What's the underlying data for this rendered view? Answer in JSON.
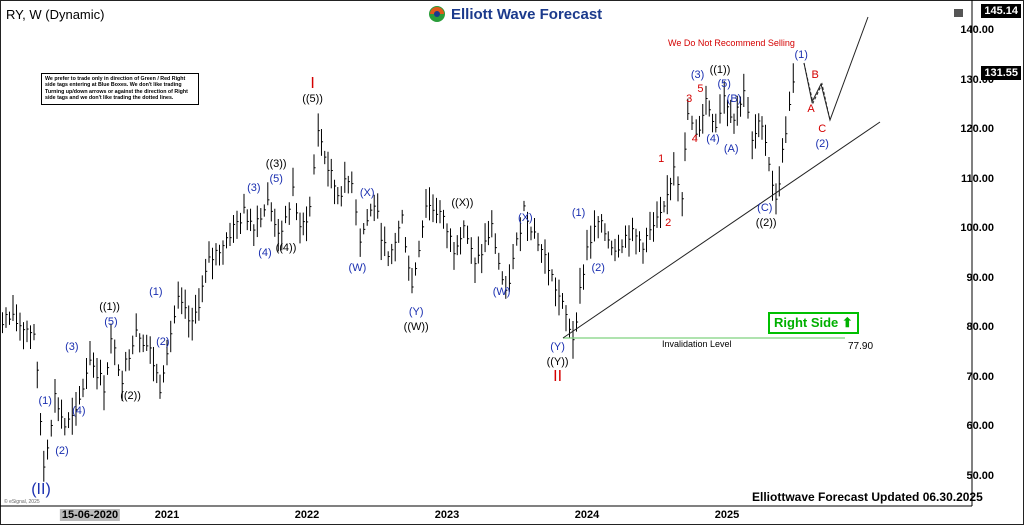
{
  "header": {
    "symbol_title": "RY, W (Dynamic)",
    "brand": "Elliott Wave Forecast"
  },
  "note_box": "We prefer to trade only in direction of Green / Red Right side tags entering at Blue Boxes. We don't like trading Turning up/down arrows or against the direction of Right side tags and we don't like trading the dotted lines.",
  "warning": "We Do Not Recommend Selling",
  "right_side_tag": "Right Side",
  "invalidation": {
    "label": "Invalidation Level",
    "value": "77.90"
  },
  "updated": "Elliottwave Forecast Updated 06.30.2025",
  "copyright": "© eSignal, 2025",
  "price_labels": {
    "current": "131.55",
    "high": "145.14"
  },
  "colors": {
    "blue_label": "#1a2fb0",
    "red_label": "#d40000",
    "right_side": "#00b000",
    "invalidation_line": "#7fd27f",
    "bars": "#000000"
  },
  "chart_data": {
    "type": "line",
    "title": "RY, W (Dynamic)",
    "ylim": [
      45,
      145
    ],
    "y_ticks": [
      "140.00",
      "130.00",
      "120.00",
      "110.00",
      "100.00",
      "90.00",
      "80.00",
      "70.00",
      "60.00",
      "50.00"
    ],
    "x_ticks": [
      "15-06-2020",
      "2021",
      "2022",
      "2023",
      "2024",
      "2025"
    ],
    "series": [
      {
        "values_x": [
          2019.5,
          2019.65,
          2019.85,
          2020.05,
          2020.12,
          2020.2,
          2020.27,
          2020.35,
          2020.45,
          2020.55,
          2020.6,
          2020.68,
          2020.78,
          2020.88,
          2020.95,
          2021.0,
          2021.08,
          2021.18,
          2021.3,
          2021.45,
          2021.55,
          2021.62,
          2021.72,
          2021.82,
          2021.9,
          2021.95,
          2022.02,
          2022.08,
          2022.15,
          2022.22,
          2022.32,
          2022.38,
          2022.48,
          2022.58,
          2022.68,
          2022.75,
          2022.85,
          2022.95,
          2023.05,
          2023.12,
          2023.2,
          2023.32,
          2023.42,
          2023.55,
          2023.7,
          2023.8,
          2023.9,
          2024.0,
          2024.08,
          2024.2,
          2024.3,
          2024.4,
          2024.55,
          2024.62,
          2024.68,
          2024.72,
          2024.78,
          2024.85,
          2024.92,
          2024.98,
          2025.05,
          2025.12,
          2025.18,
          2025.25,
          2025.35,
          2025.42,
          2025.5
        ],
        "values_y": [
          81,
          80,
          82,
          79,
          52,
          66,
          60,
          62,
          74,
          68,
          77,
          70,
          80,
          75,
          68,
          76,
          85,
          80,
          93,
          99,
          103,
          101,
          105,
          98,
          108,
          99,
          104,
          120,
          112,
          107,
          110,
          98,
          105,
          93,
          102,
          88,
          105,
          103,
          96,
          101,
          92,
          100,
          86,
          104,
          94,
          86,
          78,
          96,
          101,
          96,
          99,
          97,
          103,
          113,
          107,
          123,
          118,
          126,
          121,
          127,
          122,
          128,
          117,
          122,
          105,
          120,
          133
        ]
      }
    ],
    "wave_labels": [
      {
        "text": "(II)",
        "x": 2020.1,
        "y": 47,
        "color": "blue",
        "size": "big"
      },
      {
        "text": "(1)",
        "x": 2020.13,
        "y": 65,
        "color": "blue"
      },
      {
        "text": "(2)",
        "x": 2020.25,
        "y": 55,
        "color": "blue"
      },
      {
        "text": "(3)",
        "x": 2020.32,
        "y": 76,
        "color": "blue"
      },
      {
        "text": "(4)",
        "x": 2020.37,
        "y": 63,
        "color": "blue"
      },
      {
        "text": "(5)",
        "x": 2020.6,
        "y": 81,
        "color": "blue"
      },
      {
        "text": "((1))",
        "x": 2020.59,
        "y": 84,
        "color": "black"
      },
      {
        "text": "((2))",
        "x": 2020.74,
        "y": 66,
        "color": "black"
      },
      {
        "text": "(1)",
        "x": 2020.92,
        "y": 87,
        "color": "blue"
      },
      {
        "text": "(2)",
        "x": 2020.97,
        "y": 77,
        "color": "blue"
      },
      {
        "text": "(3)",
        "x": 2021.62,
        "y": 108,
        "color": "blue"
      },
      {
        "text": "(4)",
        "x": 2021.7,
        "y": 95,
        "color": "blue"
      },
      {
        "text": "(5)",
        "x": 2021.78,
        "y": 110,
        "color": "blue"
      },
      {
        "text": "((3))",
        "x": 2021.78,
        "y": 113,
        "color": "black"
      },
      {
        "text": "((4))",
        "x": 2021.85,
        "y": 96,
        "color": "black"
      },
      {
        "text": "((5))",
        "x": 2022.04,
        "y": 126,
        "color": "black"
      },
      {
        "text": "I",
        "x": 2022.04,
        "y": 129,
        "color": "red",
        "size": "big"
      },
      {
        "text": "(X)",
        "x": 2022.43,
        "y": 107,
        "color": "blue"
      },
      {
        "text": "(W)",
        "x": 2022.36,
        "y": 92,
        "color": "blue"
      },
      {
        "text": "((X))",
        "x": 2023.11,
        "y": 105,
        "color": "black"
      },
      {
        "text": "(Y)",
        "x": 2022.78,
        "y": 83,
        "color": "blue"
      },
      {
        "text": "((W))",
        "x": 2022.78,
        "y": 80,
        "color": "black"
      },
      {
        "text": "(X)",
        "x": 2023.56,
        "y": 102,
        "color": "blue"
      },
      {
        "text": "(W)",
        "x": 2023.39,
        "y": 87,
        "color": "blue"
      },
      {
        "text": "(Y)",
        "x": 2023.79,
        "y": 76,
        "color": "blue"
      },
      {
        "text": "((Y))",
        "x": 2023.79,
        "y": 73,
        "color": "black"
      },
      {
        "text": "II",
        "x": 2023.79,
        "y": 70,
        "color": "red",
        "size": "big"
      },
      {
        "text": "(1)",
        "x": 2023.94,
        "y": 103,
        "color": "blue"
      },
      {
        "text": "(2)",
        "x": 2024.08,
        "y": 92,
        "color": "blue"
      },
      {
        "text": "1",
        "x": 2024.53,
        "y": 114,
        "color": "red"
      },
      {
        "text": "2",
        "x": 2024.58,
        "y": 101,
        "color": "red"
      },
      {
        "text": "3",
        "x": 2024.73,
        "y": 126,
        "color": "red"
      },
      {
        "text": "4",
        "x": 2024.77,
        "y": 118,
        "color": "red"
      },
      {
        "text": "5",
        "x": 2024.81,
        "y": 128,
        "color": "red"
      },
      {
        "text": "(3)",
        "x": 2024.79,
        "y": 131,
        "color": "blue"
      },
      {
        "text": "(4)",
        "x": 2024.9,
        "y": 118,
        "color": "blue"
      },
      {
        "text": "((1))",
        "x": 2024.95,
        "y": 132,
        "color": "black"
      },
      {
        "text": "(5)",
        "x": 2024.98,
        "y": 129,
        "color": "blue"
      },
      {
        "text": "(B)",
        "x": 2025.05,
        "y": 126,
        "color": "blue"
      },
      {
        "text": "(A)",
        "x": 2025.03,
        "y": 116,
        "color": "blue"
      },
      {
        "text": "(C)",
        "x": 2025.27,
        "y": 104,
        "color": "blue"
      },
      {
        "text": "((2))",
        "x": 2025.28,
        "y": 101,
        "color": "black"
      },
      {
        "text": "(1)",
        "x": 2025.53,
        "y": 135,
        "color": "blue"
      },
      {
        "text": "B",
        "x": 2025.63,
        "y": 131,
        "color": "red"
      },
      {
        "text": "A",
        "x": 2025.6,
        "y": 124,
        "color": "red"
      },
      {
        "text": "C",
        "x": 2025.68,
        "y": 120,
        "color": "red"
      },
      {
        "text": "(2)",
        "x": 2025.68,
        "y": 117,
        "color": "blue"
      }
    ]
  }
}
